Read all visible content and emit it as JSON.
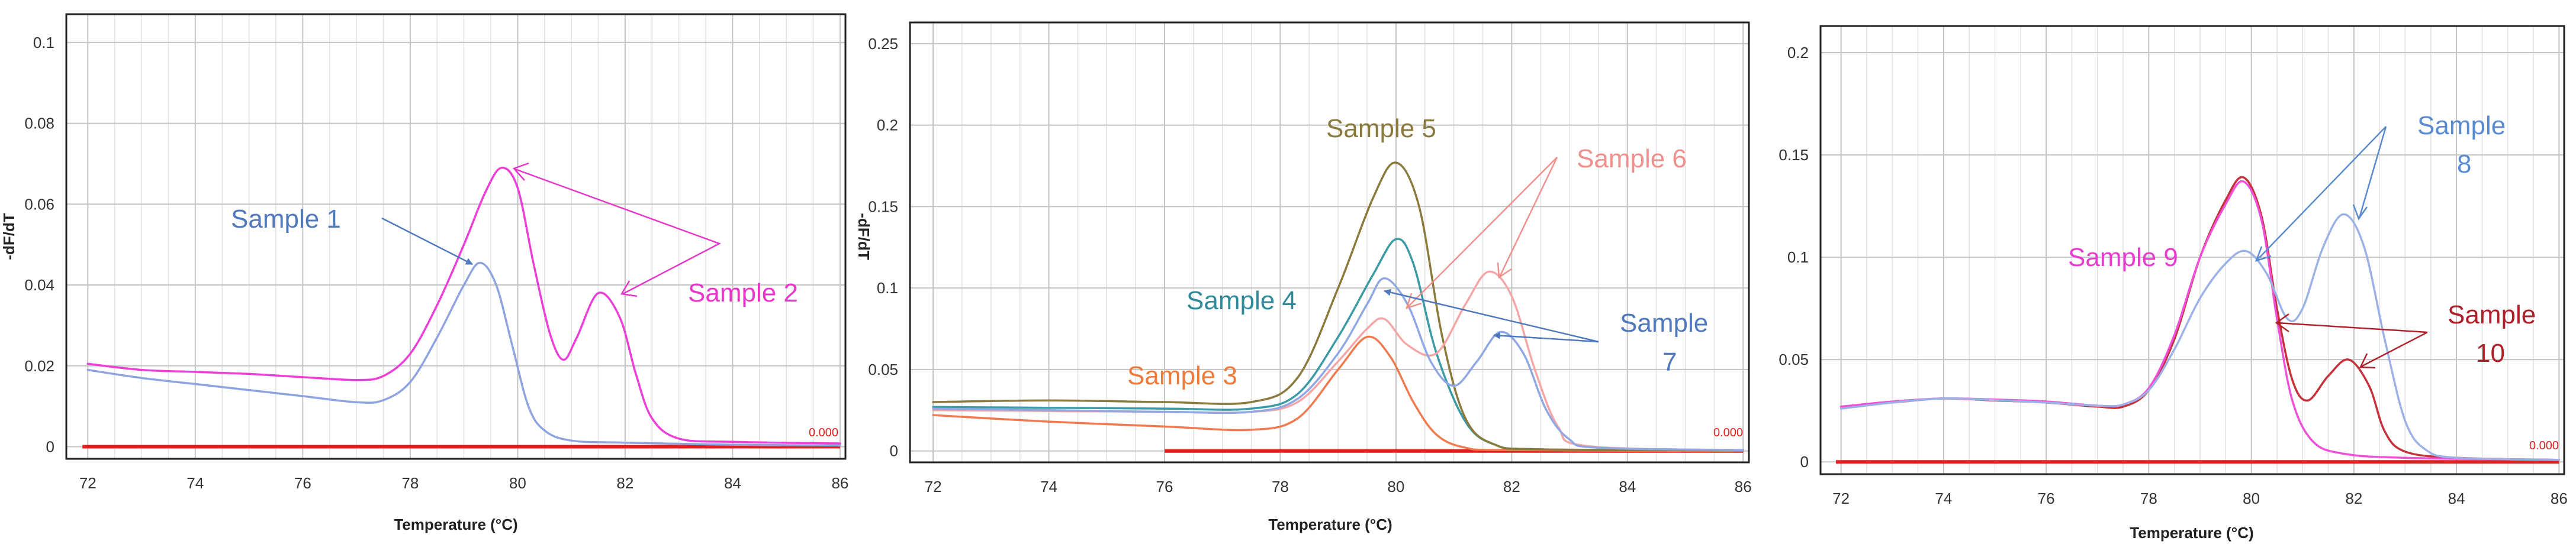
{
  "chart_data": [
    {
      "type": "line",
      "title": "",
      "xlabel": "Temperature (°C)",
      "ylabel": "-dF/dT",
      "xlim": [
        71.6,
        86.1
      ],
      "ylim": [
        -0.003,
        0.107
      ],
      "x_ticks": [
        72,
        74,
        76,
        78,
        80,
        82,
        84,
        86
      ],
      "y_ticks": [
        0,
        0.02,
        0.04,
        0.06,
        0.08,
        0.1
      ],
      "y_tick_labels": [
        "0",
        "0.02",
        "0.04",
        "0.06",
        "0.08",
        "0.1"
      ],
      "x_minor_step": 0.5,
      "baseline": {
        "label": "0.000",
        "x_range": [
          71.9,
          86
        ],
        "color": "#e02020"
      },
      "series": [
        {
          "name": "Sample 1",
          "color": "#8ea4e0",
          "points": [
            [
              72,
              0.019
            ],
            [
              73,
              0.017
            ],
            [
              74,
              0.0155
            ],
            [
              75,
              0.014
            ],
            [
              76,
              0.0125
            ],
            [
              77,
              0.011
            ],
            [
              77.5,
              0.0115
            ],
            [
              78,
              0.016
            ],
            [
              78.5,
              0.027
            ],
            [
              79,
              0.04
            ],
            [
              79.3,
              0.0455
            ],
            [
              79.6,
              0.04
            ],
            [
              79.9,
              0.025
            ],
            [
              80.2,
              0.01
            ],
            [
              80.5,
              0.004
            ],
            [
              81,
              0.0015
            ],
            [
              82,
              0.001
            ],
            [
              84,
              0.0005
            ],
            [
              86,
              0.0003
            ]
          ]
        },
        {
          "name": "Sample 2",
          "color": "#ee3ed8",
          "points": [
            [
              72,
              0.0205
            ],
            [
              73,
              0.019
            ],
            [
              74,
              0.0185
            ],
            [
              75,
              0.018
            ],
            [
              76,
              0.0172
            ],
            [
              77,
              0.0165
            ],
            [
              77.5,
              0.0175
            ],
            [
              78,
              0.023
            ],
            [
              78.5,
              0.035
            ],
            [
              79,
              0.05
            ],
            [
              79.4,
              0.063
            ],
            [
              79.7,
              0.069
            ],
            [
              80,
              0.064
            ],
            [
              80.3,
              0.045
            ],
            [
              80.6,
              0.028
            ],
            [
              80.85,
              0.0215
            ],
            [
              81.1,
              0.027
            ],
            [
              81.5,
              0.038
            ],
            [
              81.9,
              0.032
            ],
            [
              82.2,
              0.018
            ],
            [
              82.5,
              0.007
            ],
            [
              83,
              0.002
            ],
            [
              84,
              0.0012
            ],
            [
              86,
              0.0008
            ]
          ]
        }
      ],
      "annotations": [
        {
          "text": "Sample 1",
          "color": "#4f79bd"
        },
        {
          "text": "Sample 2",
          "color": "#e637c9"
        }
      ]
    },
    {
      "type": "line",
      "title": "",
      "xlabel": "Temperature (°C)",
      "ylabel": "-dF/dT",
      "xlim": [
        71.6,
        86.1
      ],
      "ylim": [
        -0.007,
        0.263
      ],
      "x_ticks": [
        72,
        74,
        76,
        78,
        80,
        82,
        84,
        86
      ],
      "y_ticks": [
        0,
        0.05,
        0.1,
        0.15,
        0.2,
        0.25
      ],
      "y_tick_labels": [
        "0",
        "0.05",
        "0.1",
        "0.15",
        "0.2",
        "0.25"
      ],
      "x_minor_step": 0.5,
      "baseline": {
        "label": "0.000",
        "x_range": [
          76,
          86
        ],
        "color": "#e02020"
      },
      "series": [
        {
          "name": "Sample 3",
          "color": "#f07a4e",
          "points": [
            [
              72,
              0.022
            ],
            [
              74,
              0.018
            ],
            [
              76,
              0.015
            ],
            [
              77.5,
              0.013
            ],
            [
              78.3,
              0.02
            ],
            [
              79,
              0.05
            ],
            [
              79.5,
              0.07
            ],
            [
              79.9,
              0.058
            ],
            [
              80.3,
              0.03
            ],
            [
              80.7,
              0.01
            ],
            [
              81.2,
              0.002
            ],
            [
              82,
              0.0005
            ],
            [
              86,
              0
            ]
          ]
        },
        {
          "name": "Sample 4",
          "color": "#3a9aa6",
          "points": [
            [
              72,
              0.027
            ],
            [
              74,
              0.0265
            ],
            [
              76,
              0.026
            ],
            [
              77.5,
              0.026
            ],
            [
              78.3,
              0.035
            ],
            [
              79,
              0.07
            ],
            [
              79.6,
              0.108
            ],
            [
              80,
              0.13
            ],
            [
              80.3,
              0.115
            ],
            [
              80.7,
              0.06
            ],
            [
              81.2,
              0.018
            ],
            [
              81.7,
              0.004
            ],
            [
              82.5,
              0.001
            ],
            [
              86,
              0.0005
            ]
          ]
        },
        {
          "name": "Sample 5",
          "color": "#8a7a3c",
          "points": [
            [
              72,
              0.03
            ],
            [
              74,
              0.031
            ],
            [
              76,
              0.03
            ],
            [
              77.5,
              0.03
            ],
            [
              78.3,
              0.045
            ],
            [
              79,
              0.1
            ],
            [
              79.6,
              0.155
            ],
            [
              80,
              0.177
            ],
            [
              80.4,
              0.15
            ],
            [
              80.8,
              0.07
            ],
            [
              81.2,
              0.02
            ],
            [
              81.7,
              0.004
            ],
            [
              82.5,
              0.001
            ],
            [
              86,
              0.0005
            ]
          ]
        },
        {
          "name": "Sample 6",
          "color": "#f5a6a6",
          "points": [
            [
              72,
              0.025
            ],
            [
              74,
              0.0245
            ],
            [
              76,
              0.024
            ],
            [
              77.5,
              0.024
            ],
            [
              78.3,
              0.03
            ],
            [
              79,
              0.055
            ],
            [
              79.5,
              0.075
            ],
            [
              79.8,
              0.081
            ],
            [
              80.2,
              0.065
            ],
            [
              80.7,
              0.06
            ],
            [
              81.2,
              0.09
            ],
            [
              81.6,
              0.11
            ],
            [
              82,
              0.095
            ],
            [
              82.4,
              0.05
            ],
            [
              82.8,
              0.015
            ],
            [
              83.3,
              0.003
            ],
            [
              86,
              0.0005
            ]
          ]
        },
        {
          "name": "Sample 7",
          "color": "#8fa8e4",
          "points": [
            [
              72,
              0.026
            ],
            [
              74,
              0.025
            ],
            [
              76,
              0.024
            ],
            [
              77.5,
              0.024
            ],
            [
              78.3,
              0.032
            ],
            [
              79,
              0.06
            ],
            [
              79.5,
              0.09
            ],
            [
              79.8,
              0.106
            ],
            [
              80.2,
              0.09
            ],
            [
              80.6,
              0.055
            ],
            [
              81,
              0.04
            ],
            [
              81.4,
              0.055
            ],
            [
              81.8,
              0.073
            ],
            [
              82.2,
              0.06
            ],
            [
              82.6,
              0.025
            ],
            [
              83,
              0.007
            ],
            [
              83.5,
              0.002
            ],
            [
              86,
              0.0005
            ]
          ]
        }
      ],
      "annotations": [
        {
          "text": "Sample 3",
          "color": "#ee7a3c"
        },
        {
          "text": "Sample 4",
          "color": "#2f8a99"
        },
        {
          "text": "Sample 5",
          "color": "#8a7a3c"
        },
        {
          "text": "Sample 6",
          "color": "#f0908c"
        },
        {
          "text": "Sample",
          "color": "#4f79bd"
        },
        {
          "text": "7",
          "color": "#4f79bd"
        }
      ]
    },
    {
      "type": "line",
      "title": "",
      "xlabel": "Temperature (°C)",
      "ylabel": "",
      "xlim": [
        71.6,
        86.1
      ],
      "ylim": [
        -0.006,
        0.213
      ],
      "x_ticks": [
        72,
        74,
        76,
        78,
        80,
        82,
        84,
        86
      ],
      "y_ticks": [
        0,
        0.05,
        0.1,
        0.15,
        0.2
      ],
      "y_tick_labels": [
        "0",
        "0.05",
        "0.1",
        "0.15",
        "0.2"
      ],
      "x_minor_step": 0.5,
      "baseline": {
        "label": "0.000",
        "x_range": [
          71.9,
          86
        ],
        "color": "#e02020"
      },
      "series": [
        {
          "name": "Sample 10",
          "color": "#c5303a",
          "points": [
            [
              72,
              0.027
            ],
            [
              73,
              0.029
            ],
            [
              74,
              0.031
            ],
            [
              75,
              0.03
            ],
            [
              76,
              0.029
            ],
            [
              77,
              0.027
            ],
            [
              77.5,
              0.027
            ],
            [
              78,
              0.035
            ],
            [
              78.5,
              0.06
            ],
            [
              79,
              0.1
            ],
            [
              79.5,
              0.128
            ],
            [
              79.85,
              0.139
            ],
            [
              80.2,
              0.12
            ],
            [
              80.5,
              0.075
            ],
            [
              80.8,
              0.04
            ],
            [
              81.1,
              0.03
            ],
            [
              81.5,
              0.042
            ],
            [
              81.9,
              0.05
            ],
            [
              82.3,
              0.037
            ],
            [
              82.6,
              0.015
            ],
            [
              83,
              0.005
            ],
            [
              84,
              0.002
            ],
            [
              86,
              0.001
            ]
          ]
        },
        {
          "name": "Sample 9",
          "color": "#f04fd8",
          "points": [
            [
              72,
              0.027
            ],
            [
              73,
              0.0295
            ],
            [
              74,
              0.031
            ],
            [
              75,
              0.0305
            ],
            [
              76,
              0.0295
            ],
            [
              77,
              0.0275
            ],
            [
              77.5,
              0.028
            ],
            [
              78,
              0.036
            ],
            [
              78.5,
              0.062
            ],
            [
              79,
              0.1
            ],
            [
              79.5,
              0.126
            ],
            [
              79.85,
              0.137
            ],
            [
              80.2,
              0.118
            ],
            [
              80.5,
              0.07
            ],
            [
              80.8,
              0.03
            ],
            [
              81.2,
              0.01
            ],
            [
              81.8,
              0.004
            ],
            [
              83,
              0.002
            ],
            [
              86,
              0.001
            ]
          ]
        },
        {
          "name": "Sample 8",
          "color": "#9cb2e6",
          "points": [
            [
              72,
              0.026
            ],
            [
              73,
              0.029
            ],
            [
              74,
              0.031
            ],
            [
              75,
              0.0302
            ],
            [
              76,
              0.029
            ],
            [
              77,
              0.0275
            ],
            [
              77.5,
              0.028
            ],
            [
              78,
              0.035
            ],
            [
              78.5,
              0.055
            ],
            [
              79,
              0.08
            ],
            [
              79.5,
              0.097
            ],
            [
              79.9,
              0.103
            ],
            [
              80.3,
              0.092
            ],
            [
              80.7,
              0.07
            ],
            [
              81,
              0.075
            ],
            [
              81.4,
              0.105
            ],
            [
              81.8,
              0.121
            ],
            [
              82.2,
              0.105
            ],
            [
              82.6,
              0.06
            ],
            [
              83,
              0.02
            ],
            [
              83.4,
              0.006
            ],
            [
              84,
              0.002
            ],
            [
              86,
              0.001
            ]
          ]
        }
      ],
      "annotations": [
        {
          "text": "Sample",
          "color": "#5a8ad0"
        },
        {
          "text": "8",
          "color": "#5a8ad0"
        },
        {
          "text": "Sample 9",
          "color": "#e63ccf"
        },
        {
          "text": "Sample",
          "color": "#b0202a"
        },
        {
          "text": "10",
          "color": "#b0202a"
        }
      ]
    }
  ]
}
